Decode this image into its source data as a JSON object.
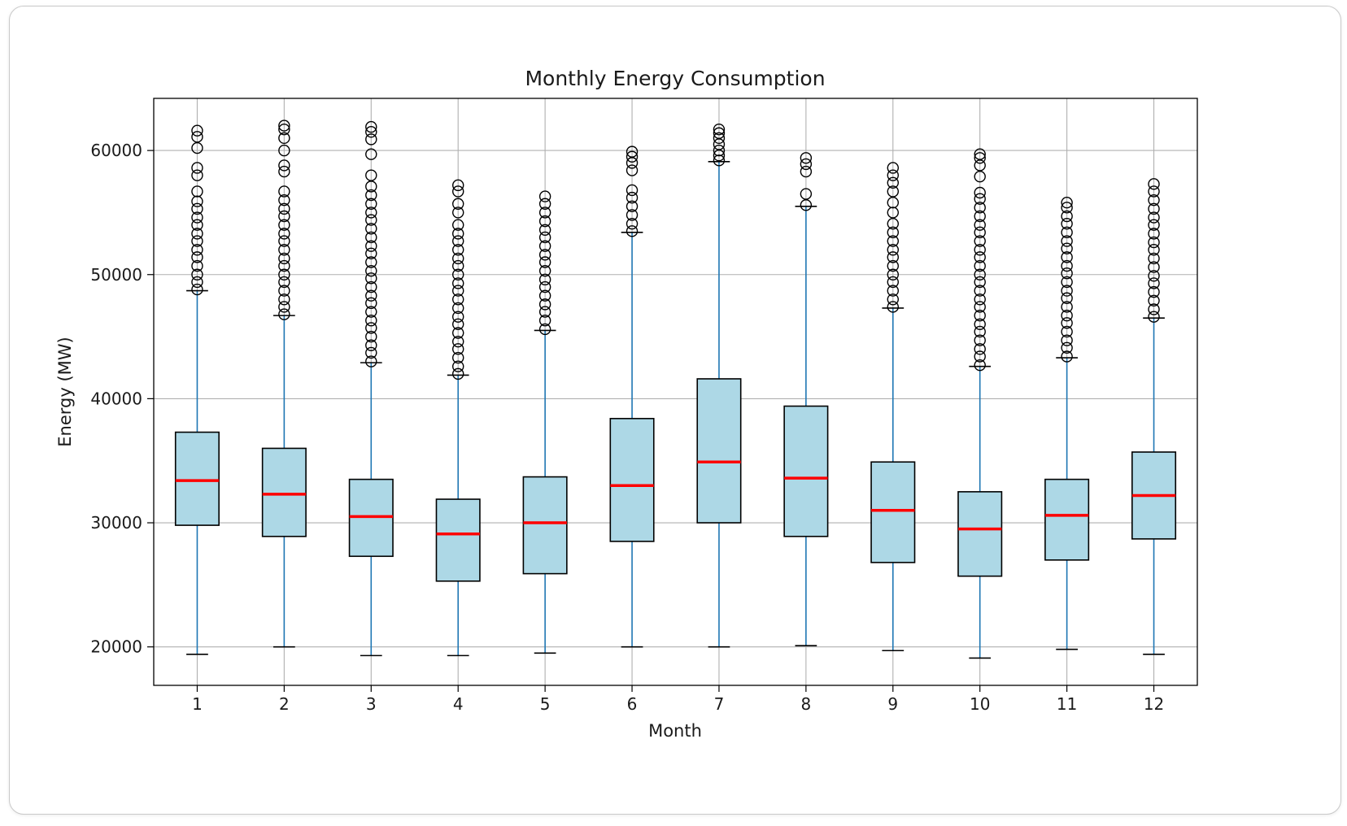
{
  "chart_data": {
    "type": "box",
    "title": "Monthly Energy Consumption",
    "xlabel": "Month",
    "ylabel": "Energy (MW)",
    "ylim": [
      16900,
      64200
    ],
    "yticks": [
      20000,
      30000,
      40000,
      50000,
      60000
    ],
    "ytick_labels": [
      "20000",
      "30000",
      "40000",
      "50000",
      "60000"
    ],
    "grid": true,
    "colors": {
      "box_fill": "#add8e6",
      "box_edge": "#000000",
      "median": "#ff0000",
      "whisker": "#1f77b4",
      "grid": "#b0b0b0"
    },
    "categories": [
      "1",
      "2",
      "3",
      "4",
      "5",
      "6",
      "7",
      "8",
      "9",
      "10",
      "11",
      "12"
    ],
    "boxes": [
      {
        "month": "1",
        "whislo": 19400,
        "q1": 29800,
        "med": 33400,
        "q3": 37300,
        "whishi": 48700,
        "fliers": [
          48800,
          49400,
          50000,
          50700,
          51400,
          52000,
          52700,
          53300,
          54000,
          54600,
          55300,
          55900,
          56700,
          58000,
          58600,
          60200,
          61100,
          61600
        ]
      },
      {
        "month": "2",
        "whislo": 20000,
        "q1": 28900,
        "med": 32300,
        "q3": 36000,
        "whishi": 46700,
        "fliers": [
          46800,
          47400,
          48000,
          48700,
          49400,
          50000,
          50700,
          51300,
          52000,
          52700,
          53300,
          54000,
          54700,
          55300,
          56000,
          56700,
          58300,
          58800,
          60000,
          61000,
          61700,
          62000
        ]
      },
      {
        "month": "3",
        "whislo": 19300,
        "q1": 27300,
        "med": 30500,
        "q3": 33500,
        "whishi": 42900,
        "fliers": [
          43000,
          43700,
          44300,
          45000,
          45700,
          46300,
          47000,
          47700,
          48300,
          49000,
          49700,
          50300,
          51000,
          51700,
          52300,
          53000,
          53700,
          54400,
          55000,
          55700,
          56400,
          57100,
          58000,
          59700,
          60900,
          61500,
          61900
        ]
      },
      {
        "month": "4",
        "whislo": 19300,
        "q1": 25300,
        "med": 29100,
        "q3": 31900,
        "whishi": 41900,
        "fliers": [
          42000,
          42600,
          43300,
          44000,
          44600,
          45300,
          46000,
          46600,
          47300,
          48000,
          48700,
          49300,
          50000,
          50700,
          51300,
          52000,
          52700,
          53300,
          54000,
          55000,
          55700,
          56700,
          57200
        ]
      },
      {
        "month": "5",
        "whislo": 19500,
        "q1": 25900,
        "med": 30000,
        "q3": 33700,
        "whishi": 45500,
        "fliers": [
          45600,
          46300,
          47000,
          47600,
          48300,
          49000,
          49600,
          50300,
          51000,
          51600,
          52300,
          53000,
          53600,
          54300,
          55000,
          55700,
          56300
        ]
      },
      {
        "month": "6",
        "whislo": 20000,
        "q1": 28500,
        "med": 33000,
        "q3": 38400,
        "whishi": 53400,
        "fliers": [
          53500,
          54100,
          54800,
          55500,
          56200,
          56800,
          58400,
          59000,
          59500,
          59900
        ]
      },
      {
        "month": "7",
        "whislo": 20000,
        "q1": 30000,
        "med": 34900,
        "q3": 41600,
        "whishi": 59100,
        "fliers": [
          59200,
          59600,
          60000,
          60500,
          61000,
          61400,
          61700
        ]
      },
      {
        "month": "8",
        "whislo": 20100,
        "q1": 28900,
        "med": 33600,
        "q3": 39400,
        "whishi": 55500,
        "fliers": [
          55600,
          56500,
          58300,
          58900,
          59400
        ]
      },
      {
        "month": "9",
        "whislo": 19700,
        "q1": 26800,
        "med": 31000,
        "q3": 34900,
        "whishi": 47300,
        "fliers": [
          47400,
          48000,
          48700,
          49400,
          50000,
          50700,
          51400,
          52000,
          52700,
          53400,
          54100,
          55000,
          55800,
          56700,
          57400,
          58000,
          58600
        ]
      },
      {
        "month": "10",
        "whislo": 19100,
        "q1": 25700,
        "med": 29500,
        "q3": 32500,
        "whishi": 42600,
        "fliers": [
          42700,
          43400,
          44000,
          44700,
          45400,
          46000,
          46700,
          47400,
          48000,
          48700,
          49400,
          50000,
          50700,
          51400,
          52000,
          52700,
          53400,
          54000,
          54700,
          55400,
          56100,
          56600,
          57900,
          58800,
          59400,
          59700
        ]
      },
      {
        "month": "11",
        "whislo": 19800,
        "q1": 27000,
        "med": 30600,
        "q3": 33500,
        "whishi": 43300,
        "fliers": [
          43400,
          44100,
          44700,
          45400,
          46100,
          46700,
          47400,
          48100,
          48700,
          49400,
          50100,
          50700,
          51400,
          52100,
          52700,
          53400,
          54100,
          54700,
          55400,
          55800
        ]
      },
      {
        "month": "12",
        "whislo": 19400,
        "q1": 28700,
        "med": 32200,
        "q3": 35700,
        "whishi": 46500,
        "fliers": [
          46600,
          47200,
          47900,
          48600,
          49300,
          49900,
          50600,
          51300,
          52000,
          52600,
          53300,
          54000,
          54600,
          55300,
          56000,
          56700,
          57300
        ]
      }
    ]
  }
}
